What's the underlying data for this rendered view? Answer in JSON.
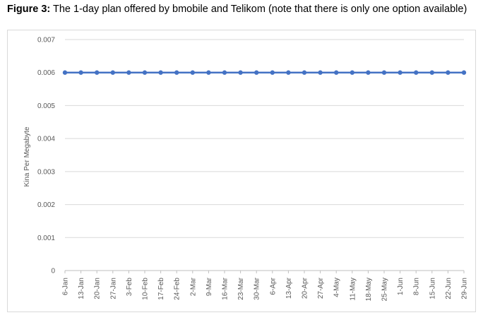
{
  "caption": {
    "prefix": "Figure 3:",
    "text": " The 1-day plan offered by bmobile and Telikom (note that there is only one option available)"
  },
  "chart_data": {
    "type": "line",
    "title": "",
    "xlabel": "",
    "ylabel": "Kina Per Megabyte",
    "ylim": [
      0,
      0.007
    ],
    "yticks": [
      "0",
      "0.001",
      "0.002",
      "0.003",
      "0.004",
      "0.005",
      "0.006",
      "0.007"
    ],
    "grid": true,
    "categories": [
      "6-Jan",
      "13-Jan",
      "20-Jan",
      "27-Jan",
      "3-Feb",
      "10-Feb",
      "17-Feb",
      "24-Feb",
      "2-Mar",
      "9-Mar",
      "16-Mar",
      "23-Mar",
      "30-Mar",
      "6-Apr",
      "13-Apr",
      "20-Apr",
      "27-Apr",
      "4-May",
      "11-May",
      "18-May",
      "25-May",
      "1-Jun",
      "8-Jun",
      "15-Jun",
      "22-Jun",
      "29-Jun"
    ],
    "series": [
      {
        "color": "#4472c4",
        "values": [
          0.006,
          0.006,
          0.006,
          0.006,
          0.006,
          0.006,
          0.006,
          0.006,
          0.006,
          0.006,
          0.006,
          0.006,
          0.006,
          0.006,
          0.006,
          0.006,
          0.006,
          0.006,
          0.006,
          0.006,
          0.006,
          0.006,
          0.006,
          0.006,
          0.006,
          0.006
        ]
      }
    ]
  }
}
